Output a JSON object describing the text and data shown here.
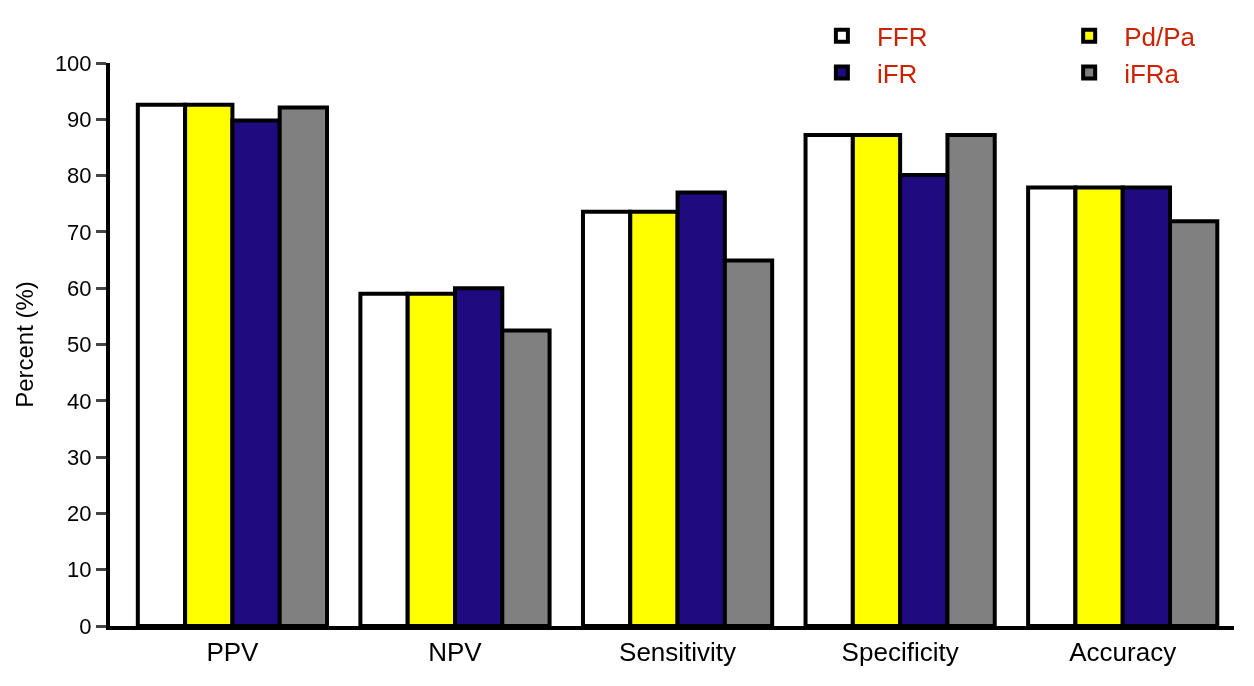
{
  "chart_data": {
    "type": "bar",
    "ylabel": "Percent (%)",
    "categories": [
      "PPV",
      "NPV",
      "Sensitivity",
      "Specificity",
      "Accuracy"
    ],
    "series": [
      {
        "name": "FFR",
        "color": "#ffffff",
        "values": [
          92.6,
          59,
          73.6,
          87.2,
          77.9
        ]
      },
      {
        "name": "Pd/Pa",
        "color": "#ffff00",
        "values": [
          92.6,
          59,
          73.6,
          87.2,
          77.9
        ]
      },
      {
        "name": "iFR",
        "color": "#1f0a80",
        "values": [
          89.8,
          60,
          77,
          80.1,
          77.9
        ]
      },
      {
        "name": "iFRa",
        "color": "#808080",
        "values": [
          92.1,
          52.5,
          64.9,
          87.2,
          71.9
        ]
      }
    ],
    "ylim": [
      0,
      100
    ],
    "yticks": [
      0,
      10,
      20,
      30,
      40,
      50,
      60,
      70,
      80,
      90,
      100
    ],
    "legend": "top right"
  }
}
